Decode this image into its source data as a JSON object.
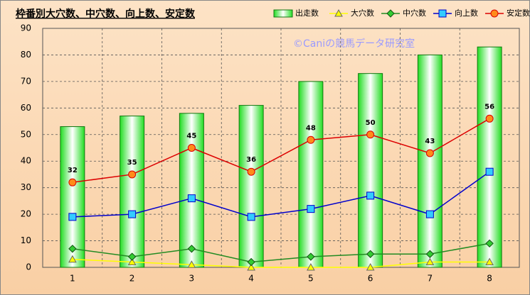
{
  "chart_data": {
    "type": "combo",
    "title": "枠番別大穴数、中穴数、向上数、安定数",
    "watermark": "©Caniの競馬データ研究室",
    "categories": [
      "1",
      "2",
      "3",
      "4",
      "5",
      "6",
      "7",
      "8"
    ],
    "ylim": [
      0,
      90
    ],
    "yticks": [
      0,
      10,
      20,
      30,
      40,
      50,
      60,
      70,
      80,
      90
    ],
    "grid": true,
    "series": [
      {
        "name": "出走数",
        "type": "bar",
        "color": "#33ff33",
        "values": [
          53,
          57,
          58,
          61,
          70,
          73,
          80,
          83
        ]
      },
      {
        "name": "大穴数",
        "type": "line",
        "marker": "triangle",
        "color": "#ffff00",
        "values": [
          3,
          2,
          1,
          0,
          0,
          0,
          2,
          2
        ]
      },
      {
        "name": "中穴数",
        "type": "line",
        "marker": "diamond",
        "color": "#228b22",
        "values": [
          7,
          4,
          7,
          2,
          4,
          5,
          5,
          9
        ]
      },
      {
        "name": "向上数",
        "type": "line",
        "marker": "square",
        "color": "#0000cc",
        "values": [
          19,
          20,
          26,
          19,
          22,
          27,
          20,
          36
        ]
      },
      {
        "name": "安定数",
        "type": "line",
        "marker": "circle",
        "color": "#dd0000",
        "values": [
          32,
          35,
          45,
          36,
          48,
          50,
          43,
          56
        ],
        "data_labels": true
      }
    ]
  }
}
